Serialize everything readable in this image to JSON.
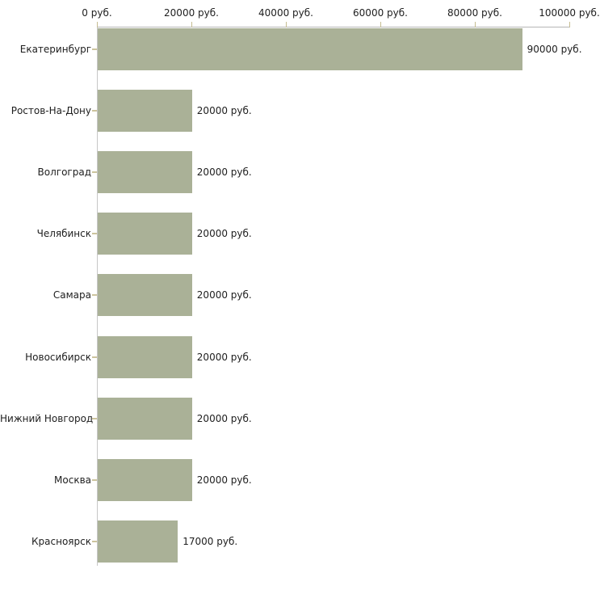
{
  "chart_data": {
    "type": "bar",
    "orientation": "horizontal",
    "title": "",
    "xlabel": "",
    "ylabel": "",
    "categories": [
      "Екатеринбург",
      "Ростов-На-Дону",
      "Волгоград",
      "Челябинск",
      "Самара",
      "Новосибирск",
      "Нижний Новгород",
      "Москва",
      "Красноярск"
    ],
    "values": [
      90000,
      20000,
      20000,
      20000,
      20000,
      20000,
      20000,
      20000,
      17000
    ],
    "value_labels": [
      "90000 руб.",
      "20000 руб.",
      "20000 руб.",
      "20000 руб.",
      "20000 руб.",
      "20000 руб.",
      "20000 руб.",
      "20000 руб.",
      "17000 руб."
    ],
    "x_axis": {
      "position": "top",
      "range": [
        0,
        100000
      ],
      "ticks": [
        0,
        20000,
        40000,
        60000,
        80000,
        100000
      ],
      "tick_labels": [
        "0 руб.",
        "20000 руб.",
        "40000 руб.",
        "60000 руб.",
        "80000 руб.",
        "100000 руб."
      ]
    },
    "grid": false,
    "legend": false,
    "colors": {
      "bar": "#aab197",
      "axis_line": "#b5b5b5",
      "tick": "#c6bd92",
      "category_tick": "#ccc49d",
      "vertical_line": "#c6c6c6",
      "text": "#1e1e1e",
      "background": "#ffffff"
    }
  }
}
